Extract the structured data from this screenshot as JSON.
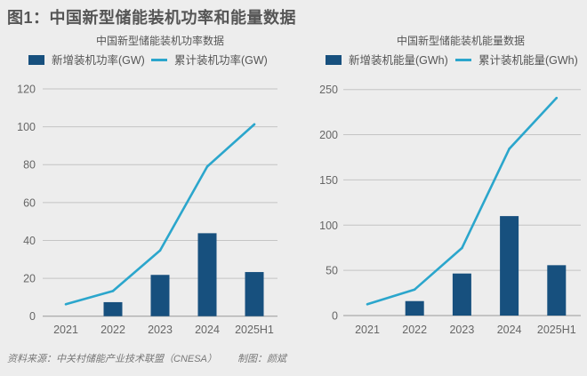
{
  "title": "图1：中国新型储能装机功率和能量数据",
  "footer": {
    "source": "资料来源：中关村储能产业技术联盟（CNESA）",
    "credit": "制图：颜斌"
  },
  "colors": {
    "bar": "#17507e",
    "line": "#2ba6cc",
    "grid": "#c4c4c4"
  },
  "chart_data": [
    {
      "type": "bar+line",
      "title": "中国新型储能装机功率数据",
      "categories": [
        "2021",
        "2022",
        "2023",
        "2024",
        "2025H1"
      ],
      "ylim": [
        0,
        120
      ],
      "yticks": [
        0,
        20,
        40,
        60,
        80,
        100,
        120
      ],
      "grid": true,
      "legend_position": "top",
      "series": [
        {
          "name": "新增装机功率(GW)",
          "type": "bar",
          "values": [
            null,
            7.4,
            21.8,
            43.8,
            23.3
          ]
        },
        {
          "name": "累计装机功率(GW)",
          "type": "line",
          "values": [
            6.3,
            13.3,
            34.7,
            79.0,
            101.3
          ]
        }
      ]
    },
    {
      "type": "bar+line",
      "title": "中国新型储能装机能量数据",
      "categories": [
        "2021",
        "2022",
        "2023",
        "2024",
        "2025H1"
      ],
      "ylim": [
        0,
        250
      ],
      "yticks": [
        0,
        50,
        100,
        150,
        200,
        250
      ],
      "grid": true,
      "legend_position": "top",
      "series": [
        {
          "name": "新增装机能量(GWh)",
          "type": "bar",
          "values": [
            null,
            16.0,
            46.5,
            110.0,
            55.7
          ]
        },
        {
          "name": "累计装机能量(GWh)",
          "type": "line",
          "values": [
            12.5,
            28.8,
            74.7,
            184.4,
            240.7
          ]
        }
      ]
    }
  ]
}
